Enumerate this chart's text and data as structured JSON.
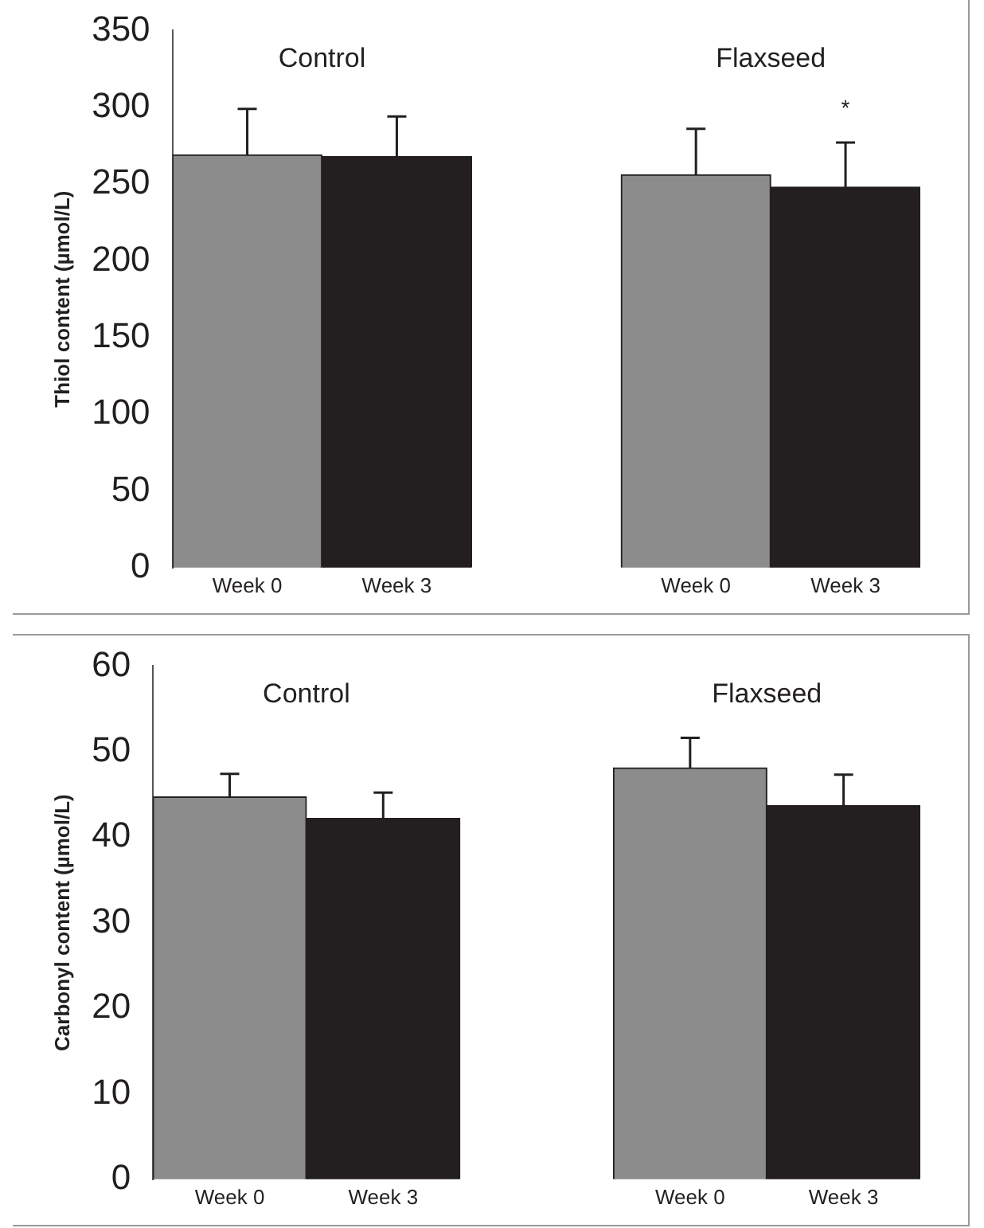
{
  "chart_data": [
    {
      "type": "bar",
      "ylabel": "Thiol content (µmol/L)",
      "categories": [
        "Week 0",
        "Week 3",
        null,
        "Week 0",
        "Week 3"
      ],
      "values": [
        269,
        268,
        null,
        256,
        248
      ],
      "colors": [
        "#8c8c8c",
        "#231f20",
        null,
        "#8c8c8c",
        "#231f20"
      ],
      "errors": [
        [
          269,
          299
        ],
        [
          268,
          294
        ],
        null,
        [
          256,
          286
        ],
        [
          248,
          277
        ]
      ],
      "ylim": [
        0,
        350
      ],
      "yticks": [
        0,
        50,
        100,
        150,
        200,
        250,
        300,
        350
      ],
      "grid": false,
      "legend": false,
      "annotations": [
        "Control",
        "Flaxseed",
        "*"
      ]
    },
    {
      "type": "bar",
      "ylabel": "Carbonyl content (µmol/L)",
      "categories": [
        "Week 0",
        "Week 3",
        null,
        "Week 0",
        "Week 3"
      ],
      "values": [
        44.7,
        42.2,
        null,
        48.1,
        43.7
      ],
      "colors": [
        "#8c8c8c",
        "#231f20",
        null,
        "#8c8c8c",
        "#231f20"
      ],
      "errors": [
        [
          44.7,
          47.4
        ],
        [
          42.2,
          45.2
        ],
        null,
        [
          48.1,
          51.6
        ],
        [
          43.7,
          47.3
        ]
      ],
      "ylim": [
        0,
        60
      ],
      "yticks": [
        0,
        10,
        20,
        30,
        40,
        50,
        60
      ],
      "grid": false,
      "legend": false,
      "annotations": [
        "Control",
        "Flaxseed"
      ]
    }
  ]
}
